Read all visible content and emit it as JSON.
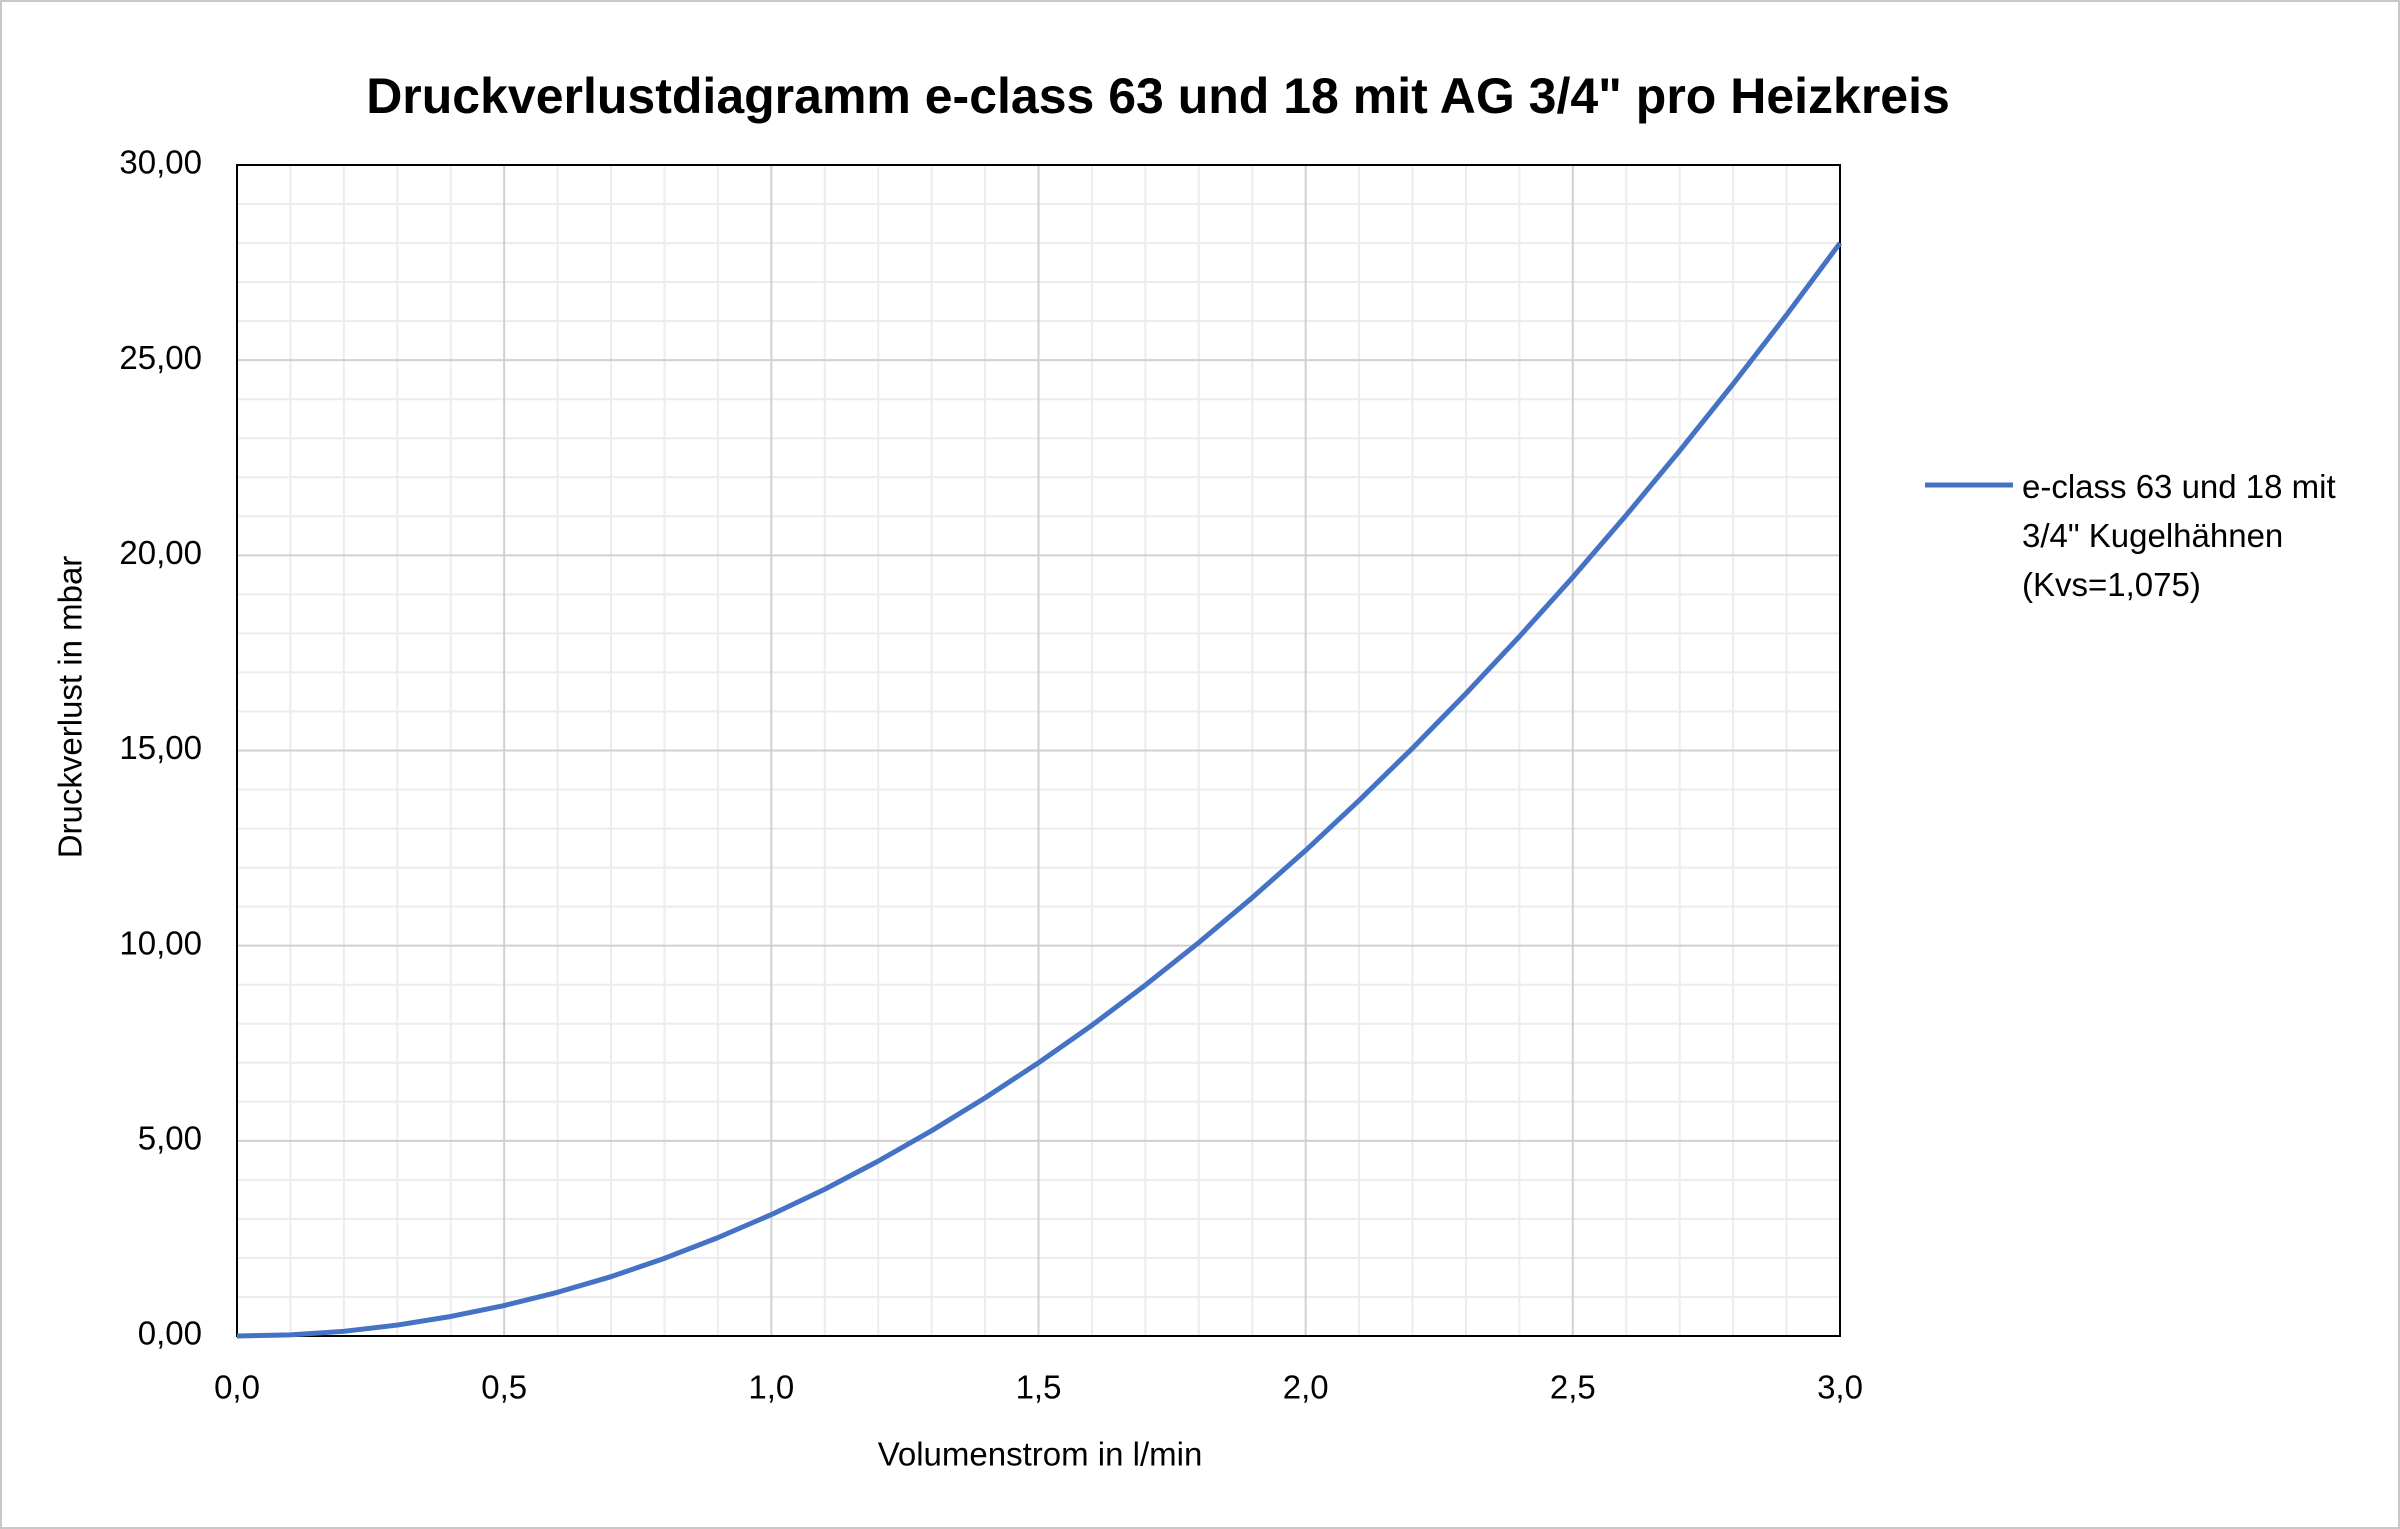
{
  "chart_data": {
    "type": "line",
    "title": "Druckverlustdiagramm e-class 63 und 18 mit AG 3/4\" pro Heizkreis",
    "x_label": "Volumenstrom in l/min",
    "y_label": "Druckverlust in mbar",
    "x": [
      0.0,
      0.1,
      0.2,
      0.3,
      0.4,
      0.5,
      0.6,
      0.7,
      0.8,
      0.9,
      1.0,
      1.1,
      1.2,
      1.3,
      1.4,
      1.5,
      1.6,
      1.7,
      1.8,
      1.9,
      2.0,
      2.1,
      2.2,
      2.3,
      2.4,
      2.5,
      2.6,
      2.7,
      2.8,
      2.9,
      3.0
    ],
    "series": [
      {
        "name": "e-class 63 und 18 mit 3/4\" Kugelhähnen (Kvs=1,075)",
        "color": "#4472c4",
        "values": [
          0,
          0.03,
          0.12,
          0.28,
          0.5,
          0.78,
          1.12,
          1.52,
          1.99,
          2.52,
          3.11,
          3.76,
          4.48,
          5.26,
          6.1,
          7.0,
          7.96,
          8.99,
          10.08,
          11.23,
          12.44,
          13.72,
          15.06,
          16.46,
          17.92,
          19.44,
          21.03,
          22.68,
          24.39,
          26.16,
          28.0
        ]
      }
    ],
    "xlim": [
      0,
      3
    ],
    "xticks": [
      {
        "value": 0,
        "label": "0,0"
      },
      {
        "value": 0.5,
        "label": "0,5"
      },
      {
        "value": 1,
        "label": "1,0"
      },
      {
        "value": 1.5,
        "label": "1,5"
      },
      {
        "value": 2,
        "label": "2,0"
      },
      {
        "value": 2.5,
        "label": "2,5"
      },
      {
        "value": 3,
        "label": "3,0"
      }
    ],
    "ylim": [
      0,
      30
    ],
    "yticks": [
      {
        "value": 0,
        "label": "0,00"
      },
      {
        "value": 5,
        "label": "5,00"
      },
      {
        "value": 10,
        "label": "10,00"
      },
      {
        "value": 15,
        "label": "15,00"
      },
      {
        "value": 20,
        "label": "20,00"
      },
      {
        "value": 25,
        "label": "25,00"
      },
      {
        "value": 30,
        "label": "30,00"
      }
    ],
    "grid": true,
    "minor_grid": true,
    "legend": "right"
  }
}
